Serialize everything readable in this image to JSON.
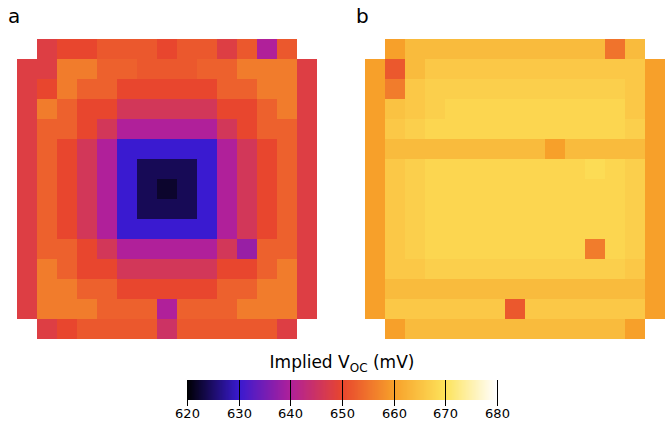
{
  "chart_data": {
    "type": "heatmap",
    "panels": [
      {
        "label": "a",
        "values": [
          [
            null,
            648,
            650,
            650,
            652,
            652,
            652,
            650,
            652,
            652,
            648,
            652,
            640,
            652,
            null
          ],
          [
            648,
            648,
            656,
            656,
            653,
            653,
            652,
            652,
            652,
            653,
            653,
            656,
            656,
            656,
            648
          ],
          [
            648,
            650,
            656,
            653,
            653,
            650,
            650,
            650,
            650,
            650,
            653,
            653,
            656,
            656,
            648
          ],
          [
            648,
            656,
            653,
            650,
            650,
            646,
            646,
            646,
            646,
            646,
            650,
            650,
            653,
            656,
            648
          ],
          [
            648,
            653,
            653,
            650,
            646,
            640,
            640,
            640,
            640,
            640,
            646,
            650,
            653,
            653,
            648
          ],
          [
            648,
            653,
            650,
            646,
            640,
            630,
            630,
            630,
            630,
            630,
            640,
            646,
            650,
            653,
            648
          ],
          [
            648,
            653,
            650,
            646,
            640,
            630,
            624,
            624,
            624,
            630,
            640,
            646,
            650,
            653,
            648
          ],
          [
            648,
            653,
            650,
            646,
            640,
            630,
            624,
            622,
            624,
            630,
            640,
            646,
            650,
            653,
            648
          ],
          [
            648,
            653,
            650,
            646,
            640,
            630,
            624,
            624,
            624,
            630,
            640,
            646,
            650,
            653,
            648
          ],
          [
            648,
            653,
            650,
            646,
            640,
            630,
            630,
            630,
            630,
            630,
            640,
            646,
            650,
            653,
            648
          ],
          [
            648,
            653,
            653,
            650,
            646,
            640,
            640,
            640,
            640,
            640,
            646,
            638,
            653,
            653,
            648
          ],
          [
            648,
            656,
            653,
            650,
            650,
            646,
            646,
            646,
            646,
            646,
            650,
            650,
            653,
            656,
            648
          ],
          [
            648,
            656,
            656,
            653,
            653,
            650,
            650,
            650,
            650,
            650,
            653,
            653,
            656,
            656,
            648
          ],
          [
            648,
            656,
            656,
            656,
            653,
            653,
            653,
            640,
            653,
            653,
            653,
            656,
            656,
            656,
            648
          ],
          [
            null,
            648,
            650,
            652,
            652,
            652,
            652,
            645,
            652,
            652,
            652,
            652,
            652,
            648,
            null
          ]
        ]
      },
      {
        "label": "b",
        "values": [
          [
            null,
            660,
            664,
            664,
            664,
            664,
            664,
            664,
            664,
            664,
            664,
            664,
            655,
            664,
            null
          ],
          [
            660,
            652,
            664,
            666,
            666,
            666,
            666,
            666,
            666,
            666,
            666,
            666,
            666,
            666,
            660
          ],
          [
            660,
            656,
            666,
            667,
            667,
            667,
            667,
            667,
            667,
            667,
            667,
            667,
            667,
            666,
            660
          ],
          [
            660,
            665,
            666,
            667,
            668,
            668,
            668,
            668,
            668,
            668,
            668,
            668,
            668,
            666,
            660
          ],
          [
            660,
            666,
            667,
            668,
            668,
            668,
            668,
            668,
            668,
            668,
            668,
            668,
            668,
            667,
            660
          ],
          [
            660,
            664,
            664,
            664,
            664,
            664,
            664,
            664,
            664,
            660,
            664,
            664,
            664,
            664,
            660
          ],
          [
            660,
            666,
            667,
            668,
            668,
            668,
            668,
            668,
            668,
            668,
            668,
            669,
            668,
            667,
            660
          ],
          [
            660,
            666,
            667,
            668,
            668,
            668,
            668,
            668,
            668,
            668,
            668,
            668,
            668,
            667,
            660
          ],
          [
            660,
            666,
            667,
            668,
            668,
            668,
            668,
            668,
            668,
            668,
            668,
            668,
            668,
            667,
            660
          ],
          [
            660,
            666,
            667,
            668,
            668,
            668,
            668,
            668,
            668,
            668,
            668,
            668,
            668,
            667,
            660
          ],
          [
            660,
            666,
            667,
            668,
            668,
            668,
            668,
            668,
            668,
            668,
            668,
            656,
            668,
            667,
            660
          ],
          [
            660,
            666,
            666,
            667,
            667,
            667,
            667,
            667,
            667,
            667,
            667,
            667,
            667,
            666,
            660
          ],
          [
            660,
            664,
            664,
            664,
            664,
            664,
            664,
            664,
            664,
            664,
            664,
            664,
            664,
            664,
            660
          ],
          [
            660,
            666,
            666,
            666,
            666,
            666,
            666,
            652,
            666,
            666,
            666,
            666,
            666,
            666,
            660
          ],
          [
            null,
            660,
            664,
            664,
            664,
            664,
            664,
            664,
            664,
            664,
            664,
            664,
            664,
            660,
            null
          ]
        ]
      }
    ],
    "colorbar": {
      "label": {
        "text": "Implied V",
        "subscript": "OC",
        "suffix": " (mV)"
      },
      "range": [
        620,
        680
      ],
      "ticks": [
        620,
        630,
        640,
        650,
        660,
        670,
        680
      ]
    }
  }
}
